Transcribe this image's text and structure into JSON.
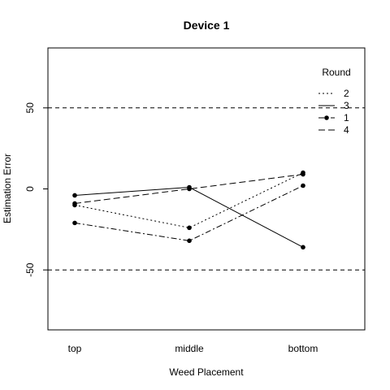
{
  "chart_data": {
    "type": "line",
    "title": "Device 1",
    "xlabel": "Weed Placement",
    "ylabel": "Estimation Error",
    "categories": [
      "top",
      "middle",
      "bottom"
    ],
    "ylim": [
      -87,
      87
    ],
    "yticks": [
      -50,
      0,
      50
    ],
    "reference_lines": [
      -50,
      50
    ],
    "grid": false,
    "legend": {
      "title": "Round",
      "position": "top-right"
    },
    "series": [
      {
        "name": "2",
        "values": [
          -10,
          -24,
          10
        ],
        "style": "dotted"
      },
      {
        "name": "3",
        "values": [
          -4,
          1,
          -36
        ],
        "style": "solid"
      },
      {
        "name": "1",
        "values": [
          -21,
          -32,
          2
        ],
        "style": "dashdot"
      },
      {
        "name": "4",
        "values": [
          -9,
          0,
          9
        ],
        "style": "longdash"
      }
    ]
  }
}
